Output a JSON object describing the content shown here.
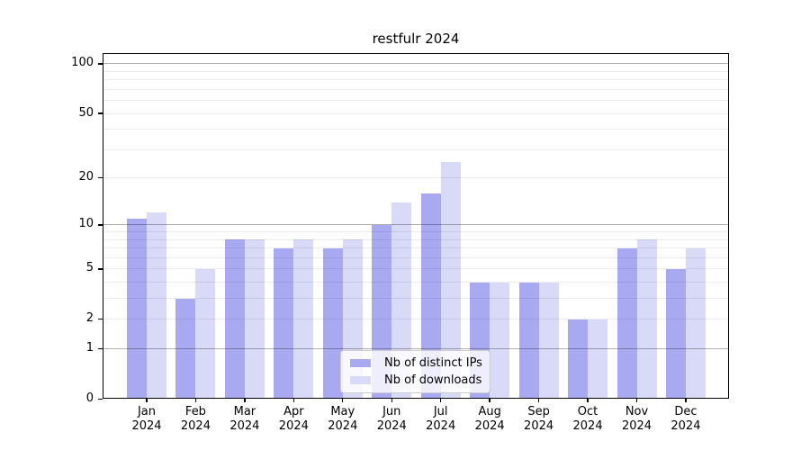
{
  "chart_data": {
    "type": "bar",
    "title": "restfulr 2024",
    "year": "2024",
    "categories": [
      "Jan",
      "Feb",
      "Mar",
      "Apr",
      "May",
      "Jun",
      "Jul",
      "Aug",
      "Sep",
      "Oct",
      "Nov",
      "Dec"
    ],
    "series": [
      {
        "name": "Nb of distinct IPs",
        "color": "#a9a9f2",
        "values": [
          11,
          3,
          8,
          7,
          7,
          10,
          16,
          4,
          4,
          2,
          7,
          5
        ]
      },
      {
        "name": "Nb of downloads",
        "color": "#d9d9f8",
        "values": [
          12,
          5,
          8,
          8,
          8,
          14,
          25,
          4,
          4,
          2,
          8,
          7
        ]
      }
    ],
    "y_scale": "log10(1+v)",
    "ylim": [
      0,
      116
    ],
    "y_ticks": [
      100,
      50,
      20,
      10,
      5,
      2,
      1,
      0
    ],
    "y_gridlines_minor": [
      2,
      3,
      4,
      5,
      6,
      7,
      8,
      9,
      20,
      30,
      40,
      50,
      60,
      70,
      80,
      90
    ],
    "y_gridlines_major": [
      1,
      10,
      100
    ],
    "grid": "on",
    "legend_position": "bottom-center-inside"
  }
}
